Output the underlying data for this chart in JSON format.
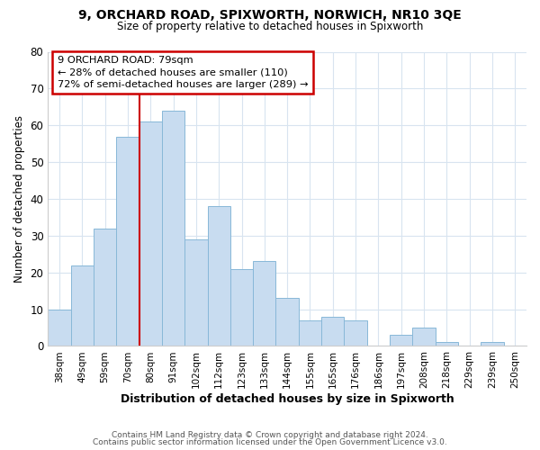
{
  "title": "9, ORCHARD ROAD, SPIXWORTH, NORWICH, NR10 3QE",
  "subtitle": "Size of property relative to detached houses in Spixworth",
  "xlabel": "Distribution of detached houses by size in Spixworth",
  "ylabel": "Number of detached properties",
  "footer_line1": "Contains HM Land Registry data © Crown copyright and database right 2024.",
  "footer_line2": "Contains public sector information licensed under the Open Government Licence v3.0.",
  "bar_labels": [
    "38sqm",
    "49sqm",
    "59sqm",
    "70sqm",
    "80sqm",
    "91sqm",
    "102sqm",
    "112sqm",
    "123sqm",
    "133sqm",
    "144sqm",
    "155sqm",
    "165sqm",
    "176sqm",
    "186sqm",
    "197sqm",
    "208sqm",
    "218sqm",
    "229sqm",
    "239sqm",
    "250sqm"
  ],
  "bar_values": [
    10,
    22,
    32,
    57,
    61,
    64,
    29,
    38,
    21,
    23,
    13,
    7,
    8,
    7,
    0,
    3,
    5,
    1,
    0,
    1,
    0
  ],
  "bar_color": "#c8dcf0",
  "bar_edge_color": "#88b8d8",
  "ylim": [
    0,
    80
  ],
  "yticks": [
    0,
    10,
    20,
    30,
    40,
    50,
    60,
    70,
    80
  ],
  "vline_color": "#cc0000",
  "annotation_title": "9 ORCHARD ROAD: 79sqm",
  "annotation_line1": "← 28% of detached houses are smaller (110)",
  "annotation_line2": "72% of semi-detached houses are larger (289) →",
  "annotation_box_color": "#ffffff",
  "annotation_box_edge": "#cc0000",
  "background_color": "#ffffff",
  "grid_color": "#d8e4f0"
}
